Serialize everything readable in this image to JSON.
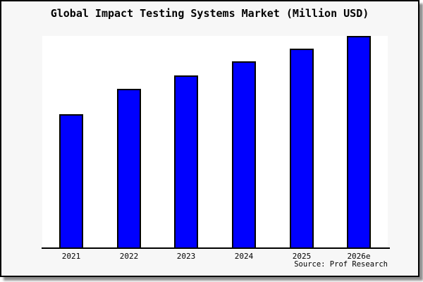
{
  "window": {
    "background_color": "#f7f7f7",
    "frame_border_color": "#000000",
    "plot_background_color": "#ffffff"
  },
  "chart_data": {
    "type": "bar",
    "title": "Global Impact Testing Systems Market (Million USD)",
    "categories": [
      "2021",
      "2022",
      "2023",
      "2024",
      "2025",
      "2026e"
    ],
    "values": [
      63,
      75,
      81.5,
      88,
      94,
      100
    ],
    "value_note": "No y-axis scale or data labels shown in image; values are relative bar heights normalized to 2026e = 100",
    "xlabel": "",
    "ylabel": "",
    "ylim": [
      0,
      100
    ],
    "grid": false,
    "legend": false,
    "y_axis_shown": false,
    "bar_fill_color": "#0000ff",
    "bar_border_color": "#000000",
    "source": "Source: Prof Research"
  }
}
